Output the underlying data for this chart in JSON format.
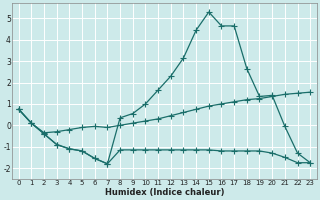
{
  "xlabel": "Humidex (Indice chaleur)",
  "bg_color": "#cdeaea",
  "line_color": "#1a6e6a",
  "grid_color": "#b8d8d8",
  "xlim": [
    -0.5,
    23.5
  ],
  "ylim": [
    -2.5,
    5.7
  ],
  "xticks": [
    0,
    1,
    2,
    3,
    4,
    5,
    6,
    7,
    8,
    9,
    10,
    11,
    12,
    13,
    14,
    15,
    16,
    17,
    18,
    19,
    20,
    21,
    22,
    23
  ],
  "yticks": [
    -2,
    -1,
    0,
    1,
    2,
    3,
    4,
    5
  ],
  "line1_x": [
    0,
    1,
    2,
    3,
    4,
    5,
    6,
    7,
    8,
    9,
    10,
    11,
    12,
    13,
    14,
    15,
    16,
    17,
    18,
    19,
    20,
    21,
    22,
    23
  ],
  "line1_y": [
    0.75,
    0.1,
    -0.4,
    -0.9,
    -1.1,
    -1.2,
    -1.55,
    -1.8,
    -1.15,
    -1.15,
    -1.15,
    -1.15,
    -1.15,
    -1.15,
    -1.15,
    -1.15,
    -1.2,
    -1.2,
    -1.2,
    -1.2,
    -1.3,
    -1.5,
    -1.75,
    -1.75
  ],
  "line2_x": [
    0,
    1,
    2,
    3,
    4,
    5,
    6,
    7,
    8,
    9,
    10,
    11,
    12,
    13,
    14,
    15,
    16,
    17,
    18,
    19,
    20,
    21,
    22,
    23
  ],
  "line2_y": [
    0.75,
    0.1,
    -0.4,
    -0.9,
    -1.1,
    -1.2,
    -1.55,
    -1.8,
    0.35,
    0.55,
    1.0,
    1.65,
    2.3,
    3.15,
    4.45,
    5.3,
    4.65,
    4.65,
    2.65,
    1.35,
    1.4,
    -0.05,
    -1.3,
    -1.75
  ],
  "line3_x": [
    0,
    1,
    2,
    3,
    4,
    5,
    6,
    7,
    8,
    9,
    10,
    11,
    12,
    13,
    14,
    15,
    16,
    17,
    18,
    19,
    20,
    21,
    22,
    23
  ],
  "line3_y": [
    0.75,
    0.1,
    -0.35,
    -0.3,
    -0.2,
    -0.1,
    -0.05,
    -0.1,
    0.0,
    0.1,
    0.2,
    0.3,
    0.45,
    0.6,
    0.75,
    0.9,
    1.0,
    1.1,
    1.2,
    1.25,
    1.35,
    1.45,
    1.5,
    1.55
  ],
  "marker": "+",
  "markersize": 4.0,
  "linewidth": 0.9
}
